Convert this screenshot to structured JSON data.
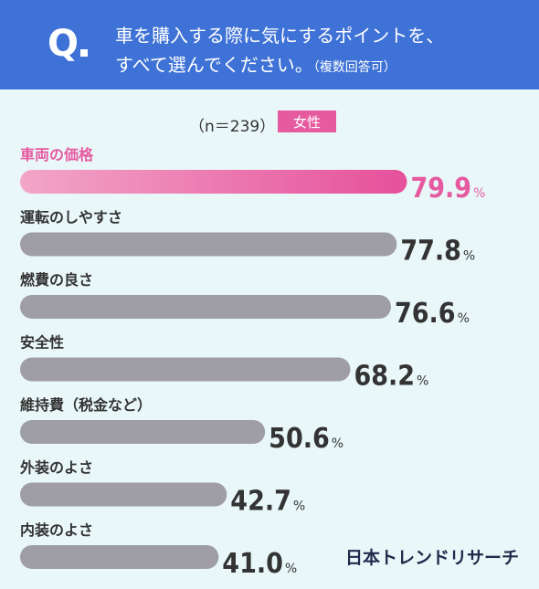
{
  "header": {
    "q_mark": "Q",
    "question_line1": "車を購入する際に気にするポイントを、",
    "question_line2": "すべて選んでください。",
    "question_note": "（複数回答可）"
  },
  "meta": {
    "sample": "（n＝239）",
    "gender": "女性"
  },
  "colors": {
    "header_bg": "#3f72d6",
    "highlight": "#e65aa0",
    "bar_gray": "#9e9ea4",
    "text_dark": "#333333"
  },
  "chart_data": {
    "type": "bar",
    "orientation": "horizontal",
    "categories": [
      "車両の価格",
      "運転のしやすさ",
      "燃費の良さ",
      "安全性",
      "維持費（税金など）",
      "外装のよさ",
      "内装のよさ"
    ],
    "values": [
      79.9,
      77.8,
      76.6,
      68.2,
      50.6,
      42.7,
      41.0
    ],
    "value_labels": [
      "79.9",
      "77.8",
      "76.6",
      "68.2",
      "50.6",
      "42.7",
      "41.0"
    ],
    "unit": "%",
    "highlight_index": 0
  },
  "brand": "日本トレンドリサーチ"
}
